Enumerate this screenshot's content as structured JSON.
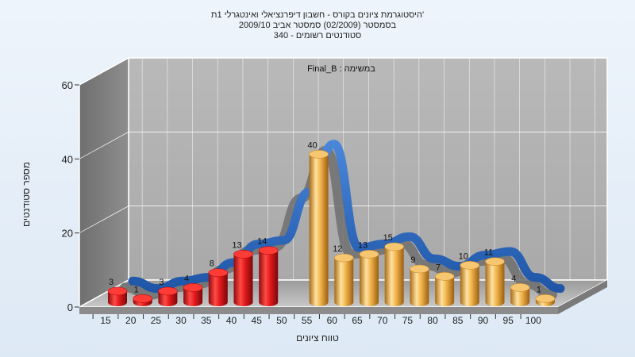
{
  "chart_data": {
    "type": "bar",
    "title_lines": [
      "היסטוגרמת ציונים בקורס - חשבון דיפרנציאלי ואינטגרלי 1ת'",
      "בסמסטר (02/2009) סמסטר אביב 2009/10",
      "340 - סטודנטים רשומים"
    ],
    "annotation": "Final_B : במשימה",
    "xlabel": "טווח ציונים",
    "ylabel": "מספר סטודנטים",
    "ylim": [
      0,
      60
    ],
    "yticks": [
      "0",
      "20",
      "40",
      "60"
    ],
    "categories": [
      "15",
      "20",
      "25",
      "30",
      "35",
      "40",
      "45",
      "50",
      "55",
      "60",
      "65",
      "70",
      "75",
      "80",
      "85",
      "90",
      "95",
      "100"
    ],
    "values": [
      3,
      1,
      3,
      4,
      8,
      13,
      14,
      null,
      40,
      12,
      13,
      15,
      9,
      7,
      10,
      11,
      4,
      1
    ],
    "value_labels": [
      "3",
      "1",
      "3",
      "4",
      "8",
      "13",
      "14",
      "",
      "40",
      "12",
      "13",
      "15",
      "9",
      "7",
      "10",
      "11",
      "4",
      "1"
    ],
    "bar_colors": {
      "fail": "#e0191b",
      "pass": "#f0b24a"
    },
    "pass_threshold": "55",
    "trend_color": "#2e6bc0",
    "grid": true
  }
}
